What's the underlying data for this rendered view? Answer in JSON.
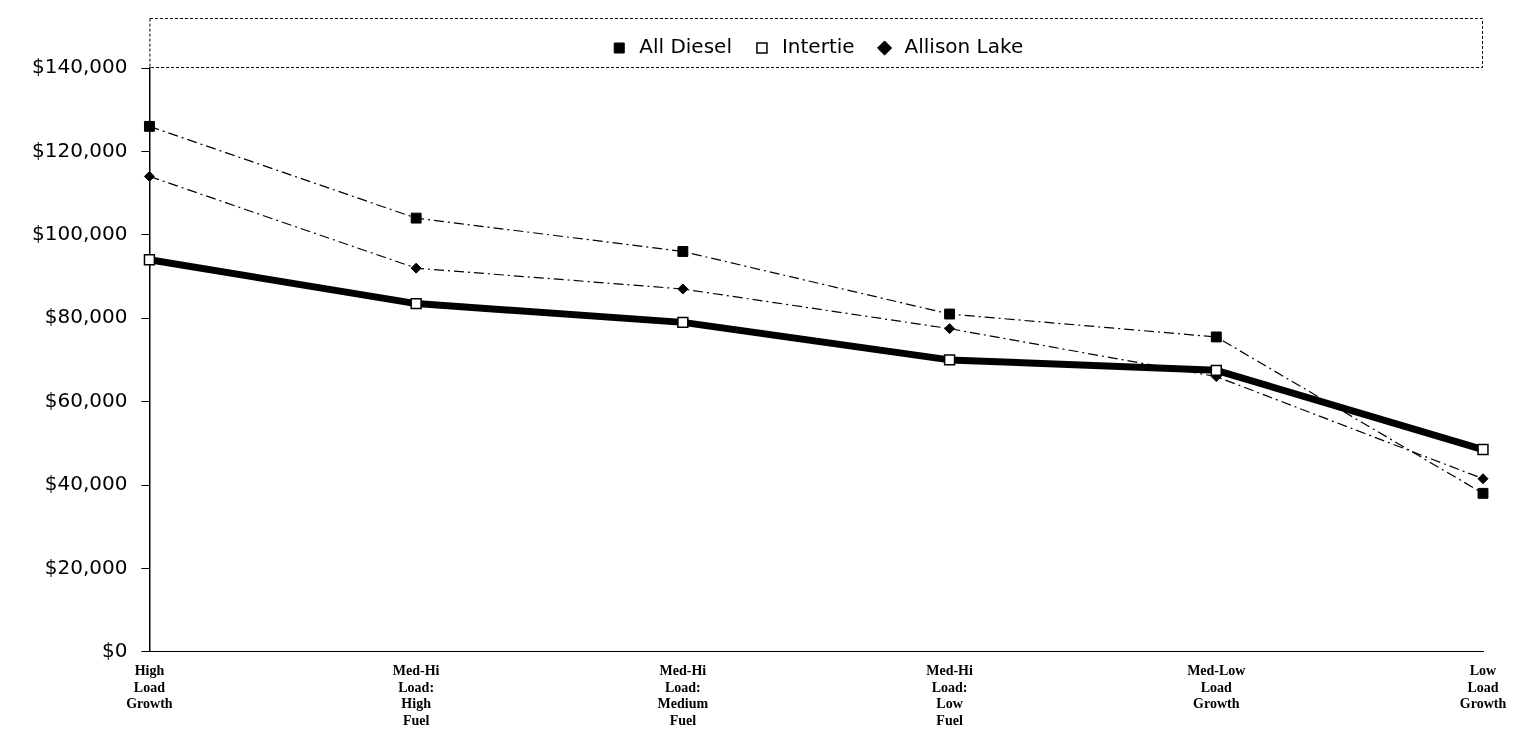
{
  "chart_data": {
    "type": "line",
    "categories": [
      "High Load Growth",
      "Med-Hi Load: High Fuel",
      "Med-Hi Load: Medium Fuel",
      "Med-Hi Load: Low Fuel",
      "Med-Low Load Growth",
      "Low Load Growth"
    ],
    "series": [
      {
        "name": "All Diesel",
        "color": "#000000",
        "marker": "square",
        "line_style": "dashed",
        "values": [
          126000,
          104000,
          96000,
          81000,
          75500,
          38000
        ]
      },
      {
        "name": "Intertie",
        "color": "#000000",
        "marker": "square",
        "line_style": "solid",
        "values": [
          94000,
          83500,
          79000,
          70000,
          67500,
          48500
        ]
      },
      {
        "name": "Allison Lake",
        "color": "#000000",
        "marker": "diamond",
        "line_style": "dashed",
        "values": [
          114000,
          92000,
          87000,
          77500,
          66000,
          41500
        ]
      }
    ],
    "ylim": [
      0,
      140000
    ],
    "yticks": [
      {
        "value": 0,
        "label": "$0"
      },
      {
        "value": 20000,
        "label": "$20,000"
      },
      {
        "value": 40000,
        "label": "$40,000"
      },
      {
        "value": 60000,
        "label": "$60,000"
      },
      {
        "value": 80000,
        "label": "$80,000"
      },
      {
        "value": 100000,
        "label": "$100,000"
      },
      {
        "value": 120000,
        "label": "$120,000"
      },
      {
        "value": 140000,
        "label": "$140,000"
      }
    ],
    "grid": false,
    "legend": "top"
  }
}
